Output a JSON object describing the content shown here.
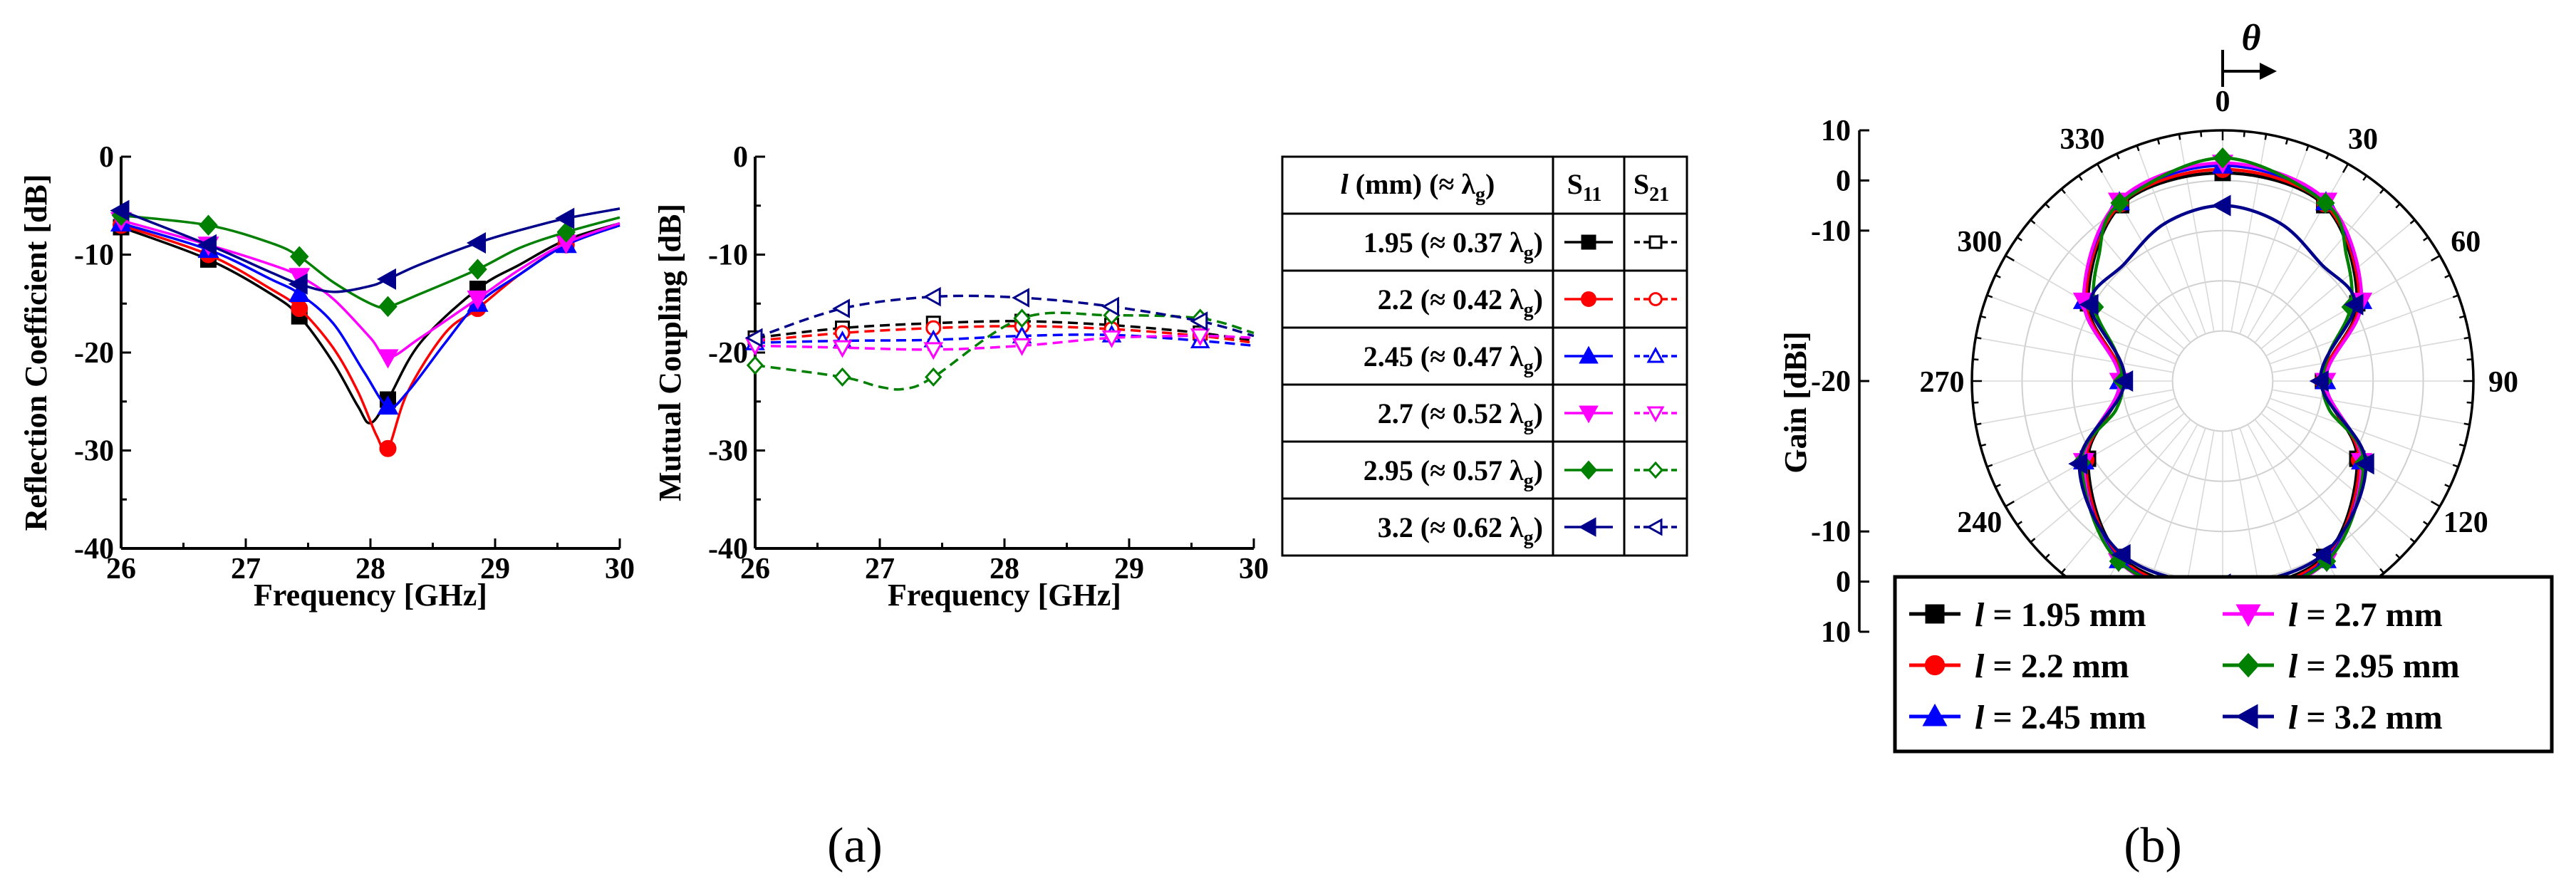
{
  "figure": {
    "panel_a_label": "(a)",
    "panel_b_label": "(b)"
  },
  "chart_data": [
    {
      "id": "reflection",
      "type": "line",
      "xlabel": "Frequency [GHz]",
      "ylabel": "Reflection Coefficient [dB]",
      "xlim": [
        26,
        30
      ],
      "ylim": [
        -40,
        0
      ],
      "xticks": [
        26,
        27,
        28,
        29,
        30
      ],
      "yticks": [
        0,
        -10,
        -20,
        -30,
        -40
      ],
      "marker_x": [
        26,
        26.7,
        27.43,
        28.14,
        28.86,
        29.57
      ],
      "series": [
        {
          "name": "l = 1.95 mm",
          "color": "#000000",
          "marker": "square",
          "x": [
            26,
            26.7,
            27.2,
            27.43,
            27.7,
            27.9,
            28.0,
            28.14,
            28.4,
            28.86,
            29.2,
            29.57,
            30
          ],
          "y": [
            -7.2,
            -10.5,
            -14.0,
            -16.3,
            -21.0,
            -25.5,
            -27.2,
            -24.8,
            -19.0,
            -13.5,
            -11.0,
            -8.5,
            -6.8
          ]
        },
        {
          "name": "l = 2.2 mm",
          "color": "#ff0000",
          "marker": "circle",
          "x": [
            26,
            26.7,
            27.2,
            27.43,
            27.7,
            27.9,
            28.05,
            28.14,
            28.3,
            28.6,
            28.86,
            29.2,
            29.57,
            30
          ],
          "y": [
            -7.0,
            -10.0,
            -13.5,
            -15.5,
            -19.5,
            -24.0,
            -28.5,
            -29.8,
            -24.0,
            -18.0,
            -15.5,
            -12.0,
            -9.0,
            -7.0
          ]
        },
        {
          "name": "l = 2.45 mm",
          "color": "#0000ff",
          "marker": "triangle-up",
          "x": [
            26,
            26.7,
            27.2,
            27.43,
            27.7,
            27.95,
            28.14,
            28.3,
            28.6,
            28.86,
            29.2,
            29.57,
            30
          ],
          "y": [
            -6.8,
            -9.5,
            -12.5,
            -14.0,
            -17.0,
            -22.0,
            -25.5,
            -24.0,
            -19.0,
            -15.0,
            -12.0,
            -9.0,
            -7.0
          ]
        },
        {
          "name": "l = 2.7 mm",
          "color": "#ff00ff",
          "marker": "triangle-down",
          "x": [
            26,
            26.7,
            27.2,
            27.43,
            27.7,
            28.0,
            28.14,
            28.4,
            28.86,
            29.2,
            29.57,
            30
          ],
          "y": [
            -6.5,
            -9.0,
            -11.0,
            -12.2,
            -14.5,
            -18.5,
            -20.5,
            -18.5,
            -14.5,
            -11.5,
            -8.8,
            -6.8
          ]
        },
        {
          "name": "l = 2.95 mm",
          "color": "#008000",
          "marker": "diamond",
          "x": [
            26,
            26.7,
            27.2,
            27.43,
            27.7,
            28.0,
            28.14,
            28.4,
            28.86,
            29.2,
            29.57,
            30
          ],
          "y": [
            -6.0,
            -7.0,
            -8.8,
            -10.2,
            -12.8,
            -15.0,
            -15.3,
            -14.0,
            -11.5,
            -9.3,
            -7.7,
            -6.2
          ]
        },
        {
          "name": "l = 3.2 mm",
          "color": "#00008b",
          "marker": "triangle-left",
          "x": [
            26,
            26.7,
            27.2,
            27.43,
            27.7,
            28.0,
            28.14,
            28.4,
            28.86,
            29.2,
            29.57,
            30
          ],
          "y": [
            -5.5,
            -9.0,
            -11.8,
            -13.0,
            -13.8,
            -13.2,
            -12.5,
            -11.0,
            -8.8,
            -7.5,
            -6.3,
            -5.3
          ]
        }
      ]
    },
    {
      "id": "mutual",
      "type": "line",
      "xlabel": "Frequency [GHz]",
      "ylabel": "Mutual Coupling [dB]",
      "xlim": [
        26,
        30
      ],
      "ylim": [
        -40,
        0
      ],
      "xticks": [
        26,
        27,
        28,
        29,
        30
      ],
      "yticks": [
        0,
        -10,
        -20,
        -30,
        -40
      ],
      "dashed": true,
      "series": [
        {
          "name": "l = 1.95 mm",
          "color": "#000000",
          "marker": "square",
          "x": [
            26,
            26.7,
            27.43,
            28.14,
            28.86,
            29.57,
            30
          ],
          "y": [
            -18.5,
            -17.5,
            -17.0,
            -16.8,
            -17.2,
            -18.0,
            -18.8
          ]
        },
        {
          "name": "l = 2.2 mm",
          "color": "#ff0000",
          "marker": "circle",
          "x": [
            26,
            26.7,
            27.43,
            28.14,
            28.86,
            29.57,
            30
          ],
          "y": [
            -18.8,
            -18.0,
            -17.5,
            -17.3,
            -17.6,
            -18.3,
            -19.0
          ]
        },
        {
          "name": "l = 2.45 mm",
          "color": "#0000ff",
          "marker": "triangle-up",
          "x": [
            26,
            26.7,
            27.43,
            28.14,
            28.86,
            29.57,
            30
          ],
          "y": [
            -19.0,
            -18.8,
            -18.7,
            -18.3,
            -18.2,
            -18.8,
            -19.3
          ]
        },
        {
          "name": "l = 2.7 mm",
          "color": "#ff00ff",
          "marker": "triangle-down",
          "x": [
            26,
            26.7,
            27.43,
            28.14,
            28.86,
            29.57,
            30
          ],
          "y": [
            -19.3,
            -19.5,
            -19.7,
            -19.3,
            -18.5,
            -18.3,
            -18.5
          ]
        },
        {
          "name": "l = 2.95 mm",
          "color": "#008000",
          "marker": "diamond",
          "x": [
            26,
            26.7,
            27.0,
            27.2,
            27.43,
            28.14,
            28.86,
            29.57,
            30
          ],
          "y": [
            -21.3,
            -22.5,
            -23.5,
            -23.7,
            -22.5,
            -16.5,
            -16.2,
            -16.5,
            -18.0
          ]
        },
        {
          "name": "l = 3.2 mm",
          "color": "#00008b",
          "marker": "triangle-left",
          "x": [
            26,
            26.7,
            27.43,
            28.14,
            28.86,
            29.57,
            30
          ],
          "y": [
            -18.5,
            -15.5,
            -14.3,
            -14.4,
            -15.3,
            -16.8,
            -18.3
          ]
        }
      ]
    },
    {
      "id": "gain",
      "type": "polar",
      "ylabel": "Gain [dBi]",
      "theta_symbol": "θ",
      "r_range": [
        -40,
        10
      ],
      "angle_labels": [
        0,
        30,
        60,
        90,
        120,
        240,
        270,
        300,
        330
      ],
      "radial_tick_labels": [
        "10",
        "0",
        "-10",
        "-20",
        "-10",
        "0",
        "10"
      ],
      "series": [
        {
          "name": "l = 1.95 mm",
          "color": "#000000",
          "marker": "square",
          "angles": [
            0,
            30,
            60,
            90,
            120,
            150,
            180,
            210,
            240,
            270,
            300,
            330
          ],
          "gain": [
            1.5,
            0.5,
            -9,
            -20,
            -9,
            0.5,
            1.5,
            0.5,
            -9,
            -20,
            -9,
            0.5
          ]
        },
        {
          "name": "l = 2.2 mm",
          "color": "#ff0000",
          "marker": "circle",
          "angles": [
            0,
            30,
            60,
            90,
            120,
            150,
            180,
            210,
            240,
            270,
            300,
            330
          ],
          "gain": [
            2.2,
            0.8,
            -8.5,
            -20,
            -8.5,
            0.8,
            2.2,
            0.8,
            -8.5,
            -20,
            -8.5,
            0.8
          ]
        },
        {
          "name": "l = 2.45 mm",
          "color": "#0000ff",
          "marker": "triangle-up",
          "angles": [
            0,
            30,
            60,
            90,
            120,
            150,
            180,
            210,
            240,
            270,
            300,
            330
          ],
          "gain": [
            3.0,
            1.2,
            -8.0,
            -19.5,
            -8.0,
            1.2,
            3.0,
            1.2,
            -8.0,
            -19.5,
            -8.0,
            1.2
          ]
        },
        {
          "name": "l = 2.7 mm",
          "color": "#ff00ff",
          "marker": "triangle-down",
          "angles": [
            0,
            30,
            60,
            90,
            120,
            150,
            180,
            210,
            240,
            270,
            300,
            330
          ],
          "gain": [
            3.5,
            1.5,
            -8.0,
            -19.5,
            -8.0,
            1.5,
            3.5,
            1.5,
            -8.0,
            -19.5,
            -8.0,
            1.5
          ]
        },
        {
          "name": "l = 2.95 mm",
          "color": "#008000",
          "marker": "diamond",
          "angles": [
            0,
            30,
            45,
            60,
            75,
            90,
            105,
            120,
            150,
            180,
            210,
            240,
            255,
            270,
            285,
            300,
            315,
            330
          ],
          "gain": [
            4.5,
            1.0,
            -5.0,
            -10.5,
            -18.0,
            -20.0,
            -18.0,
            -7.5,
            1.5,
            2.5,
            1.5,
            -7.5,
            -18.0,
            -20.0,
            -18.0,
            -10.5,
            -5.0,
            1.0
          ]
        },
        {
          "name": "l = 3.2 mm",
          "color": "#00008b",
          "marker": "triangle-left",
          "angles": [
            0,
            20,
            40,
            60,
            90,
            120,
            150,
            180,
            210,
            240,
            270,
            300,
            320,
            340
          ],
          "gain": [
            -5.0,
            -6.5,
            -9.5,
            -9.5,
            -20.5,
            -7.0,
            0.0,
            0.5,
            0.0,
            -7.0,
            -20.5,
            -9.5,
            -9.5,
            -6.5
          ]
        }
      ]
    }
  ],
  "table": {
    "header": {
      "l_italic": "l",
      "l_rest": " (mm) (≈ λ",
      "l_sub": "g",
      "l_close": ")",
      "s11": "S",
      "s11_sub": "11",
      "s21": "S",
      "s21_sub": "21"
    },
    "rows": [
      {
        "main": "1.95 (≈ 0.37 λ",
        "sub": "g",
        "close": ")",
        "color": "#000000",
        "marker": "square"
      },
      {
        "main": "2.2 (≈ 0.42 λ",
        "sub": "g",
        "close": ")",
        "color": "#ff0000",
        "marker": "circle"
      },
      {
        "main": "2.45 (≈ 0.47 λ",
        "sub": "g",
        "close": ")",
        "color": "#0000ff",
        "marker": "triangle-up"
      },
      {
        "main": "2.7 (≈ 0.52 λ",
        "sub": "g",
        "close": ")",
        "color": "#ff00ff",
        "marker": "triangle-down"
      },
      {
        "main": "2.95 (≈ 0.57 λ",
        "sub": "g",
        "close": ")",
        "color": "#008000",
        "marker": "diamond"
      },
      {
        "main": "3.2 (≈ 0.62 λ",
        "sub": "g",
        "close": ")",
        "color": "#00008b",
        "marker": "triangle-left"
      }
    ]
  },
  "legend_b": [
    {
      "italic": "l",
      "rest": " = 1.95 mm",
      "color": "#000000",
      "marker": "square"
    },
    {
      "italic": "l",
      "rest": " = 2.7 mm",
      "color": "#ff00ff",
      "marker": "triangle-down"
    },
    {
      "italic": "l",
      "rest": " = 2.2 mm",
      "color": "#ff0000",
      "marker": "circle"
    },
    {
      "italic": "l",
      "rest": " = 2.95 mm",
      "color": "#008000",
      "marker": "diamond"
    },
    {
      "italic": "l",
      "rest": " = 2.45 mm",
      "color": "#0000ff",
      "marker": "triangle-up"
    },
    {
      "italic": "l",
      "rest": " = 3.2 mm",
      "color": "#00008b",
      "marker": "triangle-left"
    }
  ]
}
